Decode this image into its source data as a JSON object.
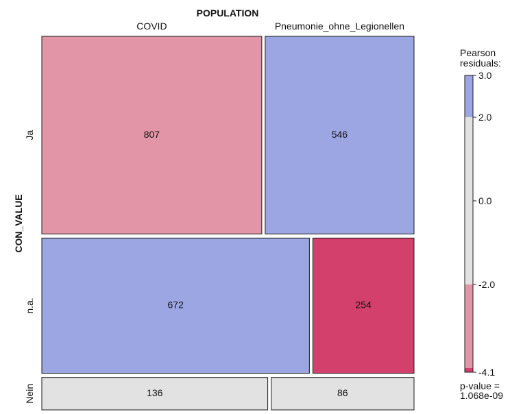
{
  "chart_data": {
    "type": "mosaic",
    "column_variable": "POPULATION",
    "row_variable": "CON_VALUE",
    "columns": [
      "COVID",
      "Pneumonie_ohne_Legionellen"
    ],
    "rows": [
      "Ja",
      "n.a.",
      "Nein"
    ],
    "counts": [
      [
        807,
        546
      ],
      [
        672,
        254
      ],
      [
        136,
        86
      ]
    ],
    "residual_class": [
      [
        "neg_mid",
        "pos_mid"
      ],
      [
        "pos_mid",
        "neg_strong"
      ],
      [
        "neutral",
        "neutral"
      ]
    ],
    "legend": {
      "title_lines": [
        "Pearson",
        "residuals:"
      ],
      "ticks": [
        3.0,
        2.0,
        0.0,
        -2.0,
        -4.1
      ],
      "tick_labels": [
        "3.0",
        "2.0",
        "0.0",
        "-2.0",
        "-4.1"
      ],
      "range": [
        -4.1,
        3.0
      ],
      "pvalue_lines": [
        "p-value =",
        "1.068e-09"
      ]
    },
    "colors": {
      "pos_mid": "#9ca6e3",
      "neutral": "#e2e2e2",
      "neg_mid": "#e295a6",
      "neg_strong": "#d2406b",
      "border": "#1a1a1a"
    }
  }
}
